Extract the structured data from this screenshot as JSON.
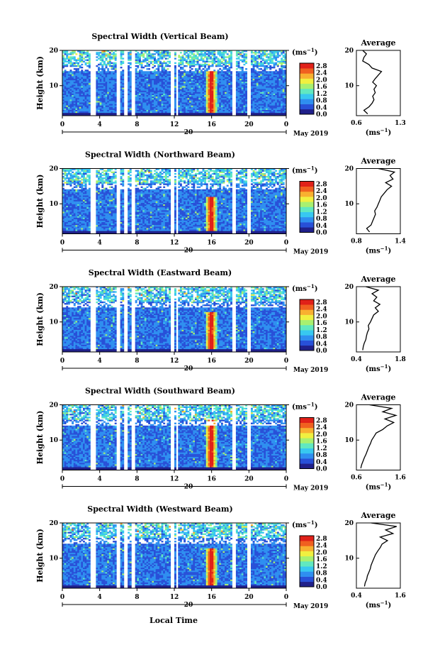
{
  "figure": {
    "xlabel": "Local Time",
    "colorbar_unit": "(ms",
    "colorbar_unit_exp": "−1",
    "colorbar_ticks": [
      "2.8",
      "2.4",
      "2.0",
      "1.6",
      "1.2",
      "0.8",
      "0.4",
      "0.0"
    ],
    "date_label": "May 2019",
    "day_label": "20",
    "avg_title": "Average",
    "avg_xlabel": "(ms",
    "avg_xlabel_exp": "−1",
    "colormap": [
      "#20208a",
      "#2850d8",
      "#2f8ff0",
      "#38c8f0",
      "#60e8c0",
      "#a8f070",
      "#f0f040",
      "#f8b030",
      "#f06020",
      "#e02018"
    ],
    "no_data_color": "#ffffff"
  },
  "chart_data": [
    {
      "type": "heatmap",
      "title": "Spectral Width (Vertical Beam)",
      "ylabel": "Height (km)",
      "xlabel": "Local Time",
      "x_ticks": [
        "0",
        "4",
        "8",
        "12",
        "16",
        "20",
        "0"
      ],
      "y_ticks": [
        "20",
        "10"
      ],
      "xlim": [
        0,
        24
      ],
      "ylim": [
        1.5,
        20
      ],
      "colorbar_range": [
        0.0,
        3.0
      ],
      "gaps_hours": [
        [
          3.0,
          3.5
        ],
        [
          5.8,
          6.1
        ],
        [
          6.6,
          6.9
        ],
        [
          7.5,
          7.8
        ],
        [
          11.7,
          12.0
        ],
        [
          12.2,
          12.4
        ],
        [
          18.2,
          18.5
        ],
        [
          19.8,
          20.1
        ]
      ],
      "high_width_feature": {
        "time_range": [
          15.3,
          16.6
        ],
        "height_range": [
          1.5,
          14
        ],
        "value": 2.8
      },
      "average_profile": {
        "xlabel": "(ms−1)",
        "x_ticks": [
          "0.6",
          "1.3"
        ],
        "xlim": [
          0.6,
          1.3
        ],
        "y_ticks": [
          "20",
          "10"
        ],
        "ylim": [
          1.5,
          20
        ],
        "height": [
          2,
          3,
          4,
          5,
          6,
          7,
          8,
          9,
          10,
          11,
          12,
          13,
          14,
          15,
          16,
          17,
          18,
          19,
          20
        ],
        "value": [
          0.78,
          0.72,
          0.8,
          0.85,
          0.88,
          0.86,
          0.9,
          0.88,
          0.92,
          0.86,
          0.9,
          0.95,
          1.0,
          0.85,
          0.8,
          0.7,
          0.72,
          0.76,
          0.7
        ]
      }
    },
    {
      "type": "heatmap",
      "title": "Spectral Width (Northward Beam)",
      "ylabel": "Height (km)",
      "xlabel": "Local Time",
      "x_ticks": [
        "0",
        "4",
        "8",
        "12",
        "16",
        "20",
        "0"
      ],
      "y_ticks": [
        "20",
        "10"
      ],
      "xlim": [
        0,
        24
      ],
      "ylim": [
        1.5,
        20
      ],
      "colorbar_range": [
        0.0,
        3.0
      ],
      "gaps_hours": [
        [
          3.0,
          3.5
        ],
        [
          5.8,
          6.1
        ],
        [
          6.6,
          6.9
        ],
        [
          7.5,
          7.8
        ],
        [
          11.7,
          12.0
        ],
        [
          12.2,
          12.4
        ],
        [
          18.2,
          18.5
        ],
        [
          19.8,
          20.1
        ]
      ],
      "high_width_feature": {
        "time_range": [
          15.3,
          16.6
        ],
        "height_range": [
          1.5,
          12
        ],
        "value": 2.8
      },
      "average_profile": {
        "xlabel": "(ms−1)",
        "x_ticks": [
          "0.8",
          "1.4"
        ],
        "xlim": [
          0.8,
          1.4
        ],
        "y_ticks": [
          "20",
          "10"
        ],
        "ylim": [
          1.5,
          20
        ],
        "height": [
          2,
          3,
          4,
          5,
          6,
          7,
          8,
          9,
          10,
          11,
          12,
          13,
          14,
          15,
          16,
          17,
          18,
          19,
          20
        ],
        "value": [
          0.98,
          0.94,
          1.0,
          1.02,
          1.04,
          1.06,
          1.05,
          1.08,
          1.1,
          1.12,
          1.14,
          1.18,
          1.22,
          1.28,
          1.2,
          1.3,
          1.26,
          1.32,
          1.1
        ]
      }
    },
    {
      "type": "heatmap",
      "title": "Spectral Width (Eastward Beam)",
      "ylabel": "Height (km)",
      "xlabel": "Local Time",
      "x_ticks": [
        "0",
        "4",
        "8",
        "12",
        "16",
        "20",
        "0"
      ],
      "y_ticks": [
        "20",
        "10"
      ],
      "xlim": [
        0,
        24
      ],
      "ylim": [
        1.5,
        20
      ],
      "colorbar_range": [
        0.0,
        3.0
      ],
      "gaps_hours": [
        [
          3.0,
          3.5
        ],
        [
          5.8,
          6.1
        ],
        [
          6.6,
          6.9
        ],
        [
          7.5,
          7.8
        ],
        [
          11.7,
          12.0
        ],
        [
          12.2,
          12.4
        ],
        [
          18.2,
          18.5
        ],
        [
          19.8,
          20.1
        ]
      ],
      "high_width_feature": {
        "time_range": [
          15.3,
          16.6
        ],
        "height_range": [
          1.5,
          13
        ],
        "value": 2.8
      },
      "average_profile": {
        "xlabel": "(ms−1)",
        "x_ticks": [
          "0.4",
          "1.8"
        ],
        "xlim": [
          0.4,
          1.8
        ],
        "y_ticks": [
          "20",
          "10"
        ],
        "ylim": [
          1.5,
          20
        ],
        "height": [
          2,
          3,
          4,
          5,
          6,
          7,
          8,
          9,
          10,
          11,
          12,
          13,
          14,
          15,
          16,
          17,
          18,
          19,
          20
        ],
        "value": [
          0.6,
          0.62,
          0.65,
          0.7,
          0.72,
          0.75,
          0.8,
          0.78,
          0.85,
          0.9,
          0.95,
          1.1,
          1.0,
          1.15,
          0.95,
          1.05,
          0.9,
          1.1,
          0.7
        ]
      }
    },
    {
      "type": "heatmap",
      "title": "Spectral Width (Southward Beam)",
      "ylabel": "Height (km)",
      "xlabel": "Local Time",
      "x_ticks": [
        "0",
        "4",
        "8",
        "12",
        "16",
        "20",
        "0"
      ],
      "y_ticks": [
        "20",
        "10"
      ],
      "xlim": [
        0,
        24
      ],
      "ylim": [
        1.5,
        20
      ],
      "colorbar_range": [
        0.0,
        3.0
      ],
      "gaps_hours": [
        [
          3.0,
          3.5
        ],
        [
          5.8,
          6.1
        ],
        [
          6.6,
          6.9
        ],
        [
          7.5,
          7.8
        ],
        [
          11.7,
          12.0
        ],
        [
          12.2,
          12.4
        ],
        [
          18.2,
          18.5
        ],
        [
          19.8,
          20.1
        ]
      ],
      "high_width_feature": {
        "time_range": [
          15.3,
          16.6
        ],
        "height_range": [
          1.5,
          16
        ],
        "value": 2.8
      },
      "average_profile": {
        "xlabel": "(ms−1)",
        "x_ticks": [
          "0.6",
          "1.6"
        ],
        "xlim": [
          0.6,
          1.6
        ],
        "y_ticks": [
          "20",
          "10"
        ],
        "ylim": [
          1.5,
          20
        ],
        "height": [
          2,
          3,
          4,
          5,
          6,
          7,
          8,
          9,
          10,
          11,
          12,
          13,
          14,
          15,
          16,
          17,
          18,
          19,
          20
        ],
        "value": [
          0.7,
          0.72,
          0.75,
          0.78,
          0.82,
          0.85,
          0.88,
          0.92,
          0.95,
          1.0,
          1.05,
          1.2,
          1.3,
          1.45,
          1.25,
          1.5,
          1.2,
          1.4,
          0.9
        ]
      }
    },
    {
      "type": "heatmap",
      "title": "Spectral Width (Westward Beam)",
      "ylabel": "Height (km)",
      "xlabel": "Local Time",
      "x_ticks": [
        "0",
        "4",
        "8",
        "12",
        "16",
        "20",
        "0"
      ],
      "y_ticks": [
        "20",
        "10"
      ],
      "xlim": [
        0,
        24
      ],
      "ylim": [
        1.5,
        20
      ],
      "colorbar_range": [
        0.0,
        3.0
      ],
      "gaps_hours": [
        [
          3.0,
          3.5
        ],
        [
          5.8,
          6.1
        ],
        [
          6.6,
          6.9
        ],
        [
          7.5,
          7.8
        ],
        [
          11.7,
          12.0
        ],
        [
          12.2,
          12.4
        ],
        [
          18.2,
          18.5
        ],
        [
          19.8,
          20.1
        ]
      ],
      "high_width_feature": {
        "time_range": [
          15.3,
          16.6
        ],
        "height_range": [
          1.5,
          13
        ],
        "value": 2.8
      },
      "average_profile": {
        "xlabel": "(ms−1)",
        "x_ticks": [
          "0.4",
          "1.6"
        ],
        "xlim": [
          0.4,
          1.6
        ],
        "y_ticks": [
          "20",
          "10"
        ],
        "ylim": [
          1.5,
          20
        ],
        "height": [
          2,
          3,
          4,
          5,
          6,
          7,
          8,
          9,
          10,
          11,
          12,
          13,
          14,
          15,
          16,
          17,
          18,
          19,
          20
        ],
        "value": [
          0.62,
          0.64,
          0.68,
          0.7,
          0.74,
          0.78,
          0.8,
          0.84,
          0.88,
          0.92,
          0.98,
          1.05,
          1.1,
          1.25,
          1.05,
          1.4,
          1.2,
          1.5,
          0.8
        ]
      }
    }
  ]
}
